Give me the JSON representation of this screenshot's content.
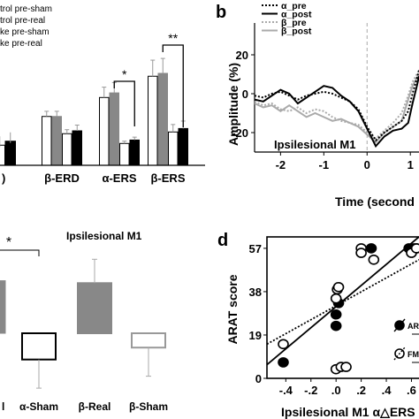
{
  "panel_labels": {
    "b": "b",
    "d": "d"
  },
  "chart_data": [
    {
      "id": "a",
      "type": "bar",
      "title": "",
      "legend": {
        "placement": "top-left",
        "entries": [
          "trol pre-sham",
          "trol pre-real",
          "ke pre-sham",
          "ke pre-real"
        ]
      },
      "categories": [
        "β-ERD",
        "α-ERS",
        "β-ERS"
      ],
      "partial_left_category_value": [
        4.5,
        5.0,
        3.5,
        4.2
      ],
      "series": [
        {
          "name": "trol pre-sham",
          "color": "#ffffff",
          "values": [
            8.5,
            11.8,
            15.5
          ],
          "err": [
            0.9,
            1.8,
            2.8
          ]
        },
        {
          "name": "trol pre-real",
          "color": "#888888",
          "values": [
            8.5,
            12.6,
            16.0
          ],
          "err": [
            0.9,
            1.8,
            2.6
          ]
        },
        {
          "name": "ke pre-sham",
          "color": "#ffffff",
          "values": [
            5.5,
            3.8,
            5.8
          ],
          "err": [
            0.7,
            0.4,
            1.3
          ]
        },
        {
          "name": "ke pre-real",
          "color": "#000000",
          "values": [
            6.0,
            4.4,
            6.4
          ],
          "err": [
            1.0,
            0.5,
            1.3
          ]
        }
      ],
      "significance": [
        {
          "category": "α-ERS",
          "label": "*"
        },
        {
          "category": "β-ERS",
          "label": "**"
        }
      ],
      "ylim": [
        0,
        20
      ]
    },
    {
      "id": "b",
      "type": "line",
      "title": "Ipsilesional M1",
      "xlabel": "Time (second",
      "ylabel": "Amplitude (%)",
      "xticks": [
        "-2",
        "-1",
        "0",
        "1"
      ],
      "yticks": [
        "20",
        "0",
        "-20"
      ],
      "xlim": [
        -2.6,
        1.2
      ],
      "ylim": [
        -30,
        30
      ],
      "legend": {
        "placement": "top-left",
        "entries": [
          "α_pre",
          "α_post",
          "β_pre",
          "β_post"
        ]
      },
      "series": [
        {
          "name": "α_pre",
          "style": "dotted",
          "color": "#000000",
          "x": [
            -2.6,
            -2.4,
            -2.2,
            -2.0,
            -1.8,
            -1.6,
            -1.4,
            -1.2,
            -1.0,
            -0.8,
            -0.6,
            -0.4,
            -0.2,
            0.0,
            0.2,
            0.4,
            0.6,
            0.8,
            0.95,
            1.05,
            1.15,
            1.2
          ],
          "y": [
            -1,
            -2,
            0,
            1,
            -1,
            -3,
            -1,
            0,
            1,
            0,
            -2,
            -4,
            -8,
            -17,
            -24,
            -20,
            -17,
            -14,
            -9,
            0,
            8,
            12
          ]
        },
        {
          "name": "α_post",
          "style": "solid",
          "color": "#000000",
          "x": [
            -2.6,
            -2.4,
            -2.2,
            -2.0,
            -1.8,
            -1.6,
            -1.4,
            -1.2,
            -1.0,
            -0.8,
            -0.6,
            -0.4,
            -0.2,
            0.0,
            0.2,
            0.4,
            0.6,
            0.8,
            0.95,
            1.05,
            1.15,
            1.2
          ],
          "y": [
            -3,
            -4,
            -1,
            2,
            0,
            -5,
            -2,
            1,
            4,
            3,
            -1,
            -4,
            -9,
            -18,
            -27,
            -22,
            -19,
            -18,
            -15,
            -5,
            4,
            9
          ]
        },
        {
          "name": "β_pre",
          "style": "dotted",
          "color": "#aaaaaa",
          "x": [
            -2.6,
            -2.4,
            -2.2,
            -2.0,
            -1.8,
            -1.6,
            -1.4,
            -1.2,
            -1.0,
            -0.8,
            -0.6,
            -0.4,
            -0.2,
            0.0,
            0.2,
            0.4,
            0.6,
            0.8,
            0.95,
            1.05,
            1.15,
            1.2
          ],
          "y": [
            -4,
            -6,
            -5,
            -8,
            -9,
            -7,
            -10,
            -8,
            -9,
            -12,
            -14,
            -15,
            -16,
            -20,
            -23,
            -19,
            -15,
            -10,
            -1,
            6,
            10,
            12
          ]
        },
        {
          "name": "β_post",
          "style": "solid",
          "color": "#aaaaaa",
          "x": [
            -2.6,
            -2.4,
            -2.2,
            -2.0,
            -1.8,
            -1.6,
            -1.4,
            -1.2,
            -1.0,
            -0.8,
            -0.6,
            -0.4,
            -0.2,
            0.0,
            0.2,
            0.4,
            0.6,
            0.8,
            0.95,
            1.05,
            1.15,
            1.2
          ],
          "y": [
            -5,
            -7,
            -6,
            -9,
            -6,
            -9,
            -12,
            -10,
            -12,
            -14,
            -13,
            -15,
            -17,
            -21,
            -25,
            -20,
            -17,
            -14,
            -3,
            4,
            8,
            10
          ]
        }
      ]
    },
    {
      "id": "c",
      "type": "bar",
      "title": "Ipsilesional M1",
      "categories": [
        "α-Sham",
        "β-Real",
        "β-Sham"
      ],
      "partial_left_category": "l",
      "partial_left_value": 2.2,
      "series": [
        {
          "name": "",
          "values": [
            -1.1,
            2.1,
            -0.6
          ],
          "err": [
            1.2,
            1.0,
            1.2
          ],
          "fills": [
            "#ffffff",
            "#888888",
            "#ffffff"
          ],
          "strokes": [
            "#000000",
            "#888888",
            "#999999"
          ]
        }
      ],
      "significance": [
        {
          "label": "*"
        }
      ],
      "ylim": [
        -3,
        3
      ]
    },
    {
      "id": "d",
      "type": "scatter",
      "xlabel": "Ipsilesional M1 α△ERS",
      "ylabel": "ARAT score",
      "xticks": [
        "-.4",
        "-.2",
        ".0",
        ".2",
        ".4",
        ".6"
      ],
      "yticks": [
        "57",
        "38",
        "19",
        "0"
      ],
      "xlim": [
        -0.55,
        0.66
      ],
      "ylim": [
        0,
        62
      ],
      "legend": {
        "placement": "bottom-right",
        "entries": [
          "ARA",
          "FMA"
        ]
      },
      "series": [
        {
          "name": "ARA",
          "marker": "filled",
          "x": [
            -0.42,
            0.0,
            0.0,
            0.02,
            0.28,
            0.58,
            0.62,
            0.64
          ],
          "y": [
            7,
            23,
            28,
            33,
            57,
            57,
            57,
            57
          ]
        },
        {
          "name": "FMA",
          "marker": "open",
          "x": [
            -0.42,
            0.0,
            0.01,
            0.02,
            0.0,
            0.04,
            0.08,
            0.2,
            0.2,
            0.3,
            0.6,
            0.64
          ],
          "y": [
            15,
            35,
            39,
            40,
            4,
            5,
            5,
            57,
            55,
            52,
            55,
            57
          ]
        }
      ],
      "fit_lines": [
        {
          "series": "ARA",
          "style": "solid",
          "from": [
            -0.55,
            6
          ],
          "to": [
            0.66,
            62
          ]
        },
        {
          "series": "FMA",
          "style": "dotted",
          "from": [
            -0.55,
            15
          ],
          "to": [
            0.66,
            52
          ]
        }
      ]
    }
  ]
}
